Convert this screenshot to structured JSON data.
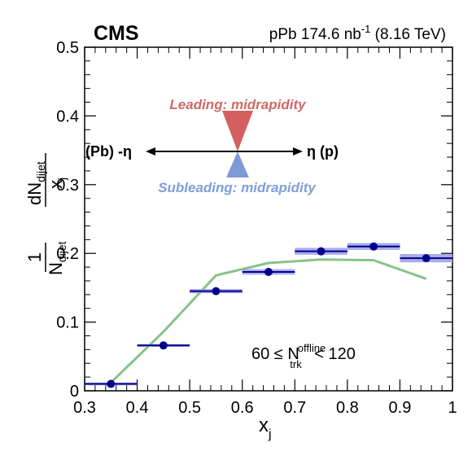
{
  "chart_data": {
    "type": "scatter",
    "experiment": "CMS",
    "dataset": {
      "label_prefix": "pPb 174.6 nb",
      "label_exp": "-1",
      "label_suffix": " (8.16 TeV)"
    },
    "xlabel": {
      "main": "x",
      "sub": "j"
    },
    "ylabel": {
      "prefix": "1",
      "norm_main": "N",
      "norm_sub": "dijet",
      "num_main": "dN",
      "num_sub": "dijet",
      "den_main": "x",
      "den_sub": "j"
    },
    "xlim": [
      0.3,
      1.0
    ],
    "ylim": [
      0,
      0.5
    ],
    "xticks": [
      "0.3",
      "0.4",
      "0.5",
      "0.6",
      "0.7",
      "0.8",
      "0.9",
      "1"
    ],
    "yticks": [
      "0",
      "0.1",
      "0.2",
      "0.3",
      "0.4",
      "0.5"
    ],
    "series": [
      {
        "kind": "data",
        "color": "#00008b",
        "syst_color": "#9a9ee6",
        "points": [
          {
            "x": 0.35,
            "y": 0.01,
            "xerr": 0.05,
            "syst": 0.002
          },
          {
            "x": 0.45,
            "y": 0.066,
            "xerr": 0.05,
            "syst": 0.002
          },
          {
            "x": 0.55,
            "y": 0.145,
            "xerr": 0.05,
            "syst": 0.003
          },
          {
            "x": 0.65,
            "y": 0.173,
            "xerr": 0.05,
            "syst": 0.004
          },
          {
            "x": 0.75,
            "y": 0.203,
            "xerr": 0.05,
            "syst": 0.005
          },
          {
            "x": 0.85,
            "y": 0.21,
            "xerr": 0.05,
            "syst": 0.005
          },
          {
            "x": 0.95,
            "y": 0.193,
            "xerr": 0.05,
            "syst": 0.006
          }
        ]
      },
      {
        "kind": "model",
        "color": "#86c486",
        "x": [
          0.35,
          0.45,
          0.55,
          0.65,
          0.75,
          0.85,
          0.95
        ],
        "y": [
          0.012,
          0.086,
          0.168,
          0.186,
          0.191,
          0.19,
          0.163
        ]
      }
    ],
    "annotations": {
      "leading": "Leading: midrapidity",
      "subleading": "Subleading: midrapidity",
      "left_arrow": "(Pb) -η",
      "right_arrow": "η (p)",
      "lead_color": "#d45f5f",
      "sublead_color": "#7c9bd6",
      "cut": {
        "prefix": "60 ≤ N",
        "sup": "offline",
        "sub": "trk",
        "suffix": " < 120"
      }
    }
  }
}
